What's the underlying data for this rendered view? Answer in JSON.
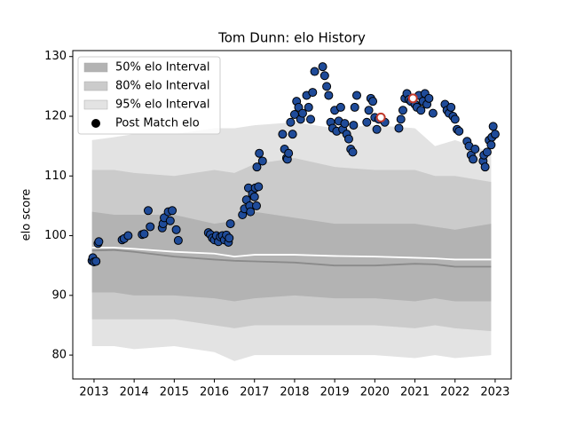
{
  "chart_data": {
    "type": "scatter",
    "title": "Tom Dunn: elo History",
    "ylabel": "elo score",
    "xlim": [
      2012.47,
      2023.4
    ],
    "ylim": [
      76,
      131
    ],
    "xticks": [
      2013,
      2014,
      2015,
      2016,
      2017,
      2018,
      2019,
      2020,
      2021,
      2022,
      2023
    ],
    "yticks": [
      80,
      90,
      100,
      110,
      120,
      130
    ],
    "legend": "upper left",
    "interval_x": [
      2012.95,
      2013.5,
      2014,
      2015,
      2016,
      2016.5,
      2017,
      2018,
      2019,
      2020,
      2021,
      2021.5,
      2022,
      2022.9
    ],
    "bands": [
      {
        "name": "95% elo Interval",
        "color": "#e3e3e3",
        "upper": [
          116,
          116.5,
          117,
          117,
          118,
          118,
          118.5,
          119,
          118,
          118.5,
          118,
          115,
          116,
          114
        ],
        "lower": [
          81.5,
          81.5,
          81,
          81.5,
          80.5,
          79,
          80,
          80,
          80,
          80,
          79.5,
          80,
          79.5,
          80
        ]
      },
      {
        "name": "80% elo Interval",
        "color": "#cbcbcb",
        "upper": [
          111,
          111,
          110.5,
          110,
          111,
          110.5,
          112,
          113,
          111.5,
          111,
          111,
          110,
          110,
          109
        ],
        "lower": [
          86,
          86,
          86,
          86,
          85,
          84.5,
          85,
          85,
          85,
          85,
          84.5,
          85,
          84.5,
          84
        ]
      },
      {
        "name": "50% elo Interval",
        "color": "#b3b3b3",
        "upper": [
          104,
          103.5,
          103.5,
          103.5,
          102,
          102.5,
          104,
          103,
          102,
          102,
          102,
          101.5,
          101,
          102
        ],
        "lower": [
          90.5,
          90.5,
          90,
          90,
          89.5,
          89,
          89.5,
          90,
          89.5,
          89.5,
          89,
          89.5,
          89,
          89
        ]
      }
    ],
    "lines": [
      {
        "color": "#ffffff",
        "values": [
          98,
          98,
          97.8,
          97.3,
          97,
          96.5,
          96.8,
          96.8,
          96.6,
          96.5,
          96.3,
          96.2,
          96,
          96
        ]
      },
      {
        "color": "#8a8a8a",
        "values": [
          97.5,
          97.6,
          97.3,
          96.5,
          96,
          95.8,
          95.7,
          95.5,
          95,
          95,
          95.3,
          95.2,
          94.8,
          94.8
        ]
      }
    ],
    "series": [
      {
        "name": "Post Match elo",
        "color": "#1f4b99",
        "edgecolor": "#000000",
        "x": [
          2012.95,
          2012.97,
          2013.0,
          2013.05,
          2013.1,
          2013.12,
          2013.7,
          2013.75,
          2013.85,
          2014.2,
          2014.25,
          2014.35,
          2014.4,
          2014.7,
          2014.72,
          2014.75,
          2014.85,
          2014.9,
          2014.95,
          2015.05,
          2015.1,
          2015.85,
          2015.9,
          2015.95,
          2016.0,
          2016.05,
          2016.1,
          2016.15,
          2016.2,
          2016.25,
          2016.3,
          2016.35,
          2016.4,
          2016.37,
          2016.7,
          2016.75,
          2016.8,
          2016.85,
          2016.88,
          2016.9,
          2016.95,
          2017.0,
          2017.02,
          2017.05,
          2017.1,
          2017.06,
          2017.12,
          2017.2,
          2017.7,
          2017.75,
          2017.8,
          2017.82,
          2017.85,
          2017.9,
          2017.95,
          2018.0,
          2018.05,
          2018.1,
          2018.15,
          2018.2,
          2018.3,
          2018.35,
          2018.4,
          2018.45,
          2018.5,
          2018.7,
          2018.75,
          2018.8,
          2018.85,
          2018.9,
          2018.95,
          2019.0,
          2019.05,
          2019.1,
          2019.15,
          2019.2,
          2019.25,
          2019.3,
          2019.35,
          2019.4,
          2019.45,
          2019.5,
          2019.55,
          2019.47,
          2019.8,
          2019.85,
          2019.9,
          2019.95,
          2020.0,
          2020.05,
          2020.1,
          2020.25,
          2020.6,
          2020.65,
          2020.7,
          2020.75,
          2020.8,
          2020.85,
          2020.9,
          2021.0,
          2021.05,
          2021.1,
          2021.15,
          2021.2,
          2021.25,
          2021.3,
          2021.35,
          2021.45,
          2021.75,
          2021.8,
          2021.85,
          2021.9,
          2021.95,
          2022.0,
          2022.05,
          2022.1,
          2022.3,
          2022.35,
          2022.4,
          2022.45,
          2022.5,
          2022.7,
          2022.72,
          2022.75,
          2022.8,
          2022.85,
          2022.9,
          2022.92,
          2022.95,
          2023.0
        ],
        "values": [
          95.8,
          96.3,
          95.6,
          95.7,
          98.7,
          99.0,
          99.3,
          99.5,
          100.0,
          100.2,
          100.3,
          104.2,
          101.5,
          101.3,
          102.0,
          103.0,
          104.0,
          102.5,
          104.2,
          101.0,
          99.2,
          100.5,
          100.2,
          99.6,
          99.3,
          100.0,
          99.0,
          99.8,
          100.0,
          99.3,
          100.1,
          98.9,
          102.0,
          99.6,
          103.5,
          104.5,
          106.0,
          108.0,
          105.0,
          104.0,
          107.0,
          106.5,
          108.0,
          105.0,
          108.2,
          111.5,
          113.8,
          112.5,
          117.0,
          114.5,
          113.0,
          112.8,
          113.8,
          119.0,
          117.0,
          120.3,
          122.5,
          121.5,
          119.5,
          120.5,
          123.5,
          121.5,
          119.5,
          124.0,
          127.5,
          128.3,
          126.8,
          125.0,
          123.5,
          119.0,
          118.0,
          121.0,
          117.5,
          119.2,
          121.5,
          117.8,
          118.8,
          117.0,
          116.2,
          114.5,
          114.0,
          121.5,
          123.5,
          118.5,
          119.0,
          121.0,
          123.0,
          122.5,
          119.8,
          117.8,
          119.5,
          119.0,
          118.0,
          119.5,
          121.0,
          123.0,
          123.8,
          122.8,
          122.5,
          122.0,
          121.5,
          123.5,
          121.0,
          122.5,
          123.8,
          122.0,
          123.0,
          120.5,
          122.0,
          121.0,
          120.5,
          121.5,
          120.0,
          119.5,
          117.8,
          117.5,
          115.8,
          115.0,
          113.5,
          112.8,
          114.5,
          112.5,
          113.5,
          111.5,
          114.0,
          116.0,
          115.2,
          116.5,
          118.3,
          117.0
        ]
      }
    ],
    "highlight": {
      "color": "#ffffff",
      "edgecolor": "#c0392b",
      "x": [
        2020.15,
        2020.95
      ],
      "values": [
        119.8,
        123.0
      ]
    }
  }
}
